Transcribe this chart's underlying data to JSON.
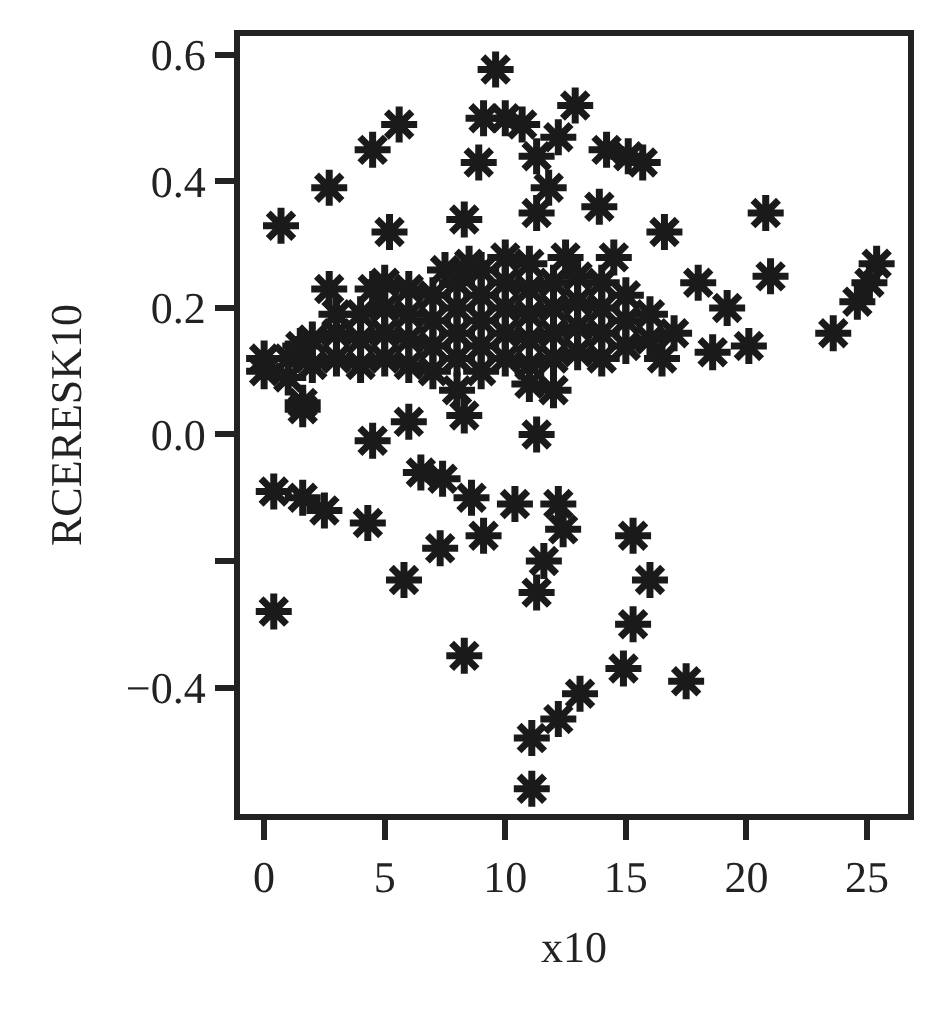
{
  "chart_data": {
    "type": "scatter",
    "xlabel": "x10",
    "ylabel": "RCERESK10",
    "xlim": [
      -1,
      26.7
    ],
    "ylim": [
      -0.6,
      0.63
    ],
    "xticks": [
      0,
      5,
      10,
      15,
      20,
      25
    ],
    "yticks": [
      {
        "value": -0.4,
        "label": "−0.4"
      },
      {
        "value": -0.2,
        "label": null
      },
      {
        "value": 0,
        "label": "0.0"
      },
      0.2,
      0.4,
      0.6
    ],
    "grid": false,
    "marker": "cross",
    "series": [
      {
        "color": "#1a1a1a",
        "x": [
          9.6,
          10,
          9.1,
          10.7,
          12.9,
          12.2,
          14.2,
          15.1,
          15.7,
          8.9,
          11.3,
          11.8,
          11.3,
          13.9,
          5.6,
          4.5,
          2.7,
          0.7,
          5.2,
          8.3,
          20.8,
          21,
          25.4,
          25.1,
          24.6,
          23.6,
          20.1,
          18.6,
          18,
          19.2,
          16.6,
          2.7,
          1.6,
          1.6,
          4.5,
          6,
          6.5,
          7.4,
          8.3,
          8.6,
          11.3,
          0.4,
          1.6,
          2.5,
          4.3,
          7.3,
          9.1,
          5.8,
          10.4,
          12.2,
          12.4,
          11.6,
          11.3,
          15.3,
          16,
          15.3,
          14.9,
          17.5,
          0.4,
          8.3,
          13.1,
          12.2,
          11.1,
          11.1,
          0,
          0,
          1,
          1,
          1.5,
          2,
          2,
          3,
          3,
          3,
          4,
          4,
          4,
          4.5,
          5,
          5,
          5,
          5,
          6,
          6,
          6,
          6,
          7,
          7,
          7,
          7,
          7.5,
          8,
          8,
          8,
          8,
          8.5,
          9,
          9,
          9,
          9,
          9,
          10,
          10,
          10,
          10,
          10,
          11,
          11,
          11,
          11,
          11,
          12,
          12,
          12,
          12,
          12.5,
          13,
          13,
          13,
          13,
          14,
          14,
          14,
          14,
          14.5,
          15,
          15,
          15,
          16,
          16,
          16.5,
          17,
          11,
          12,
          8
        ],
        "values": [
          0.577,
          0.5,
          0.5,
          0.49,
          0.52,
          0.47,
          0.45,
          0.44,
          0.43,
          0.43,
          0.44,
          0.39,
          0.35,
          0.36,
          0.49,
          0.45,
          0.39,
          0.33,
          0.32,
          0.34,
          0.35,
          0.25,
          0.27,
          0.24,
          0.21,
          0.16,
          0.14,
          0.13,
          0.24,
          0.2,
          0.32,
          0.23,
          0.05,
          0.04,
          -0.01,
          0.02,
          -0.06,
          -0.07,
          0.03,
          -0.1,
          0.0,
          -0.09,
          -0.1,
          -0.12,
          -0.14,
          -0.18,
          -0.16,
          -0.23,
          -0.11,
          -0.11,
          -0.15,
          -0.2,
          -0.25,
          -0.16,
          -0.23,
          -0.3,
          -0.37,
          -0.39,
          -0.28,
          -0.35,
          -0.41,
          -0.45,
          -0.48,
          -0.56,
          0.1,
          0.12,
          0.09,
          0.12,
          0.14,
          0.11,
          0.15,
          0.12,
          0.16,
          0.19,
          0.11,
          0.15,
          0.19,
          0.23,
          0.12,
          0.16,
          0.2,
          0.24,
          0.11,
          0.15,
          0.19,
          0.23,
          0.1,
          0.14,
          0.18,
          0.22,
          0.26,
          0.12,
          0.16,
          0.2,
          0.24,
          0.27,
          0.1,
          0.14,
          0.18,
          0.22,
          0.26,
          0.12,
          0.16,
          0.2,
          0.24,
          0.28,
          0.11,
          0.15,
          0.19,
          0.23,
          0.27,
          0.12,
          0.16,
          0.2,
          0.24,
          0.28,
          0.13,
          0.17,
          0.21,
          0.25,
          0.12,
          0.16,
          0.2,
          0.24,
          0.28,
          0.14,
          0.18,
          0.22,
          0.15,
          0.19,
          0.12,
          0.16,
          0.08,
          0.07,
          0.07
        ]
      }
    ]
  }
}
